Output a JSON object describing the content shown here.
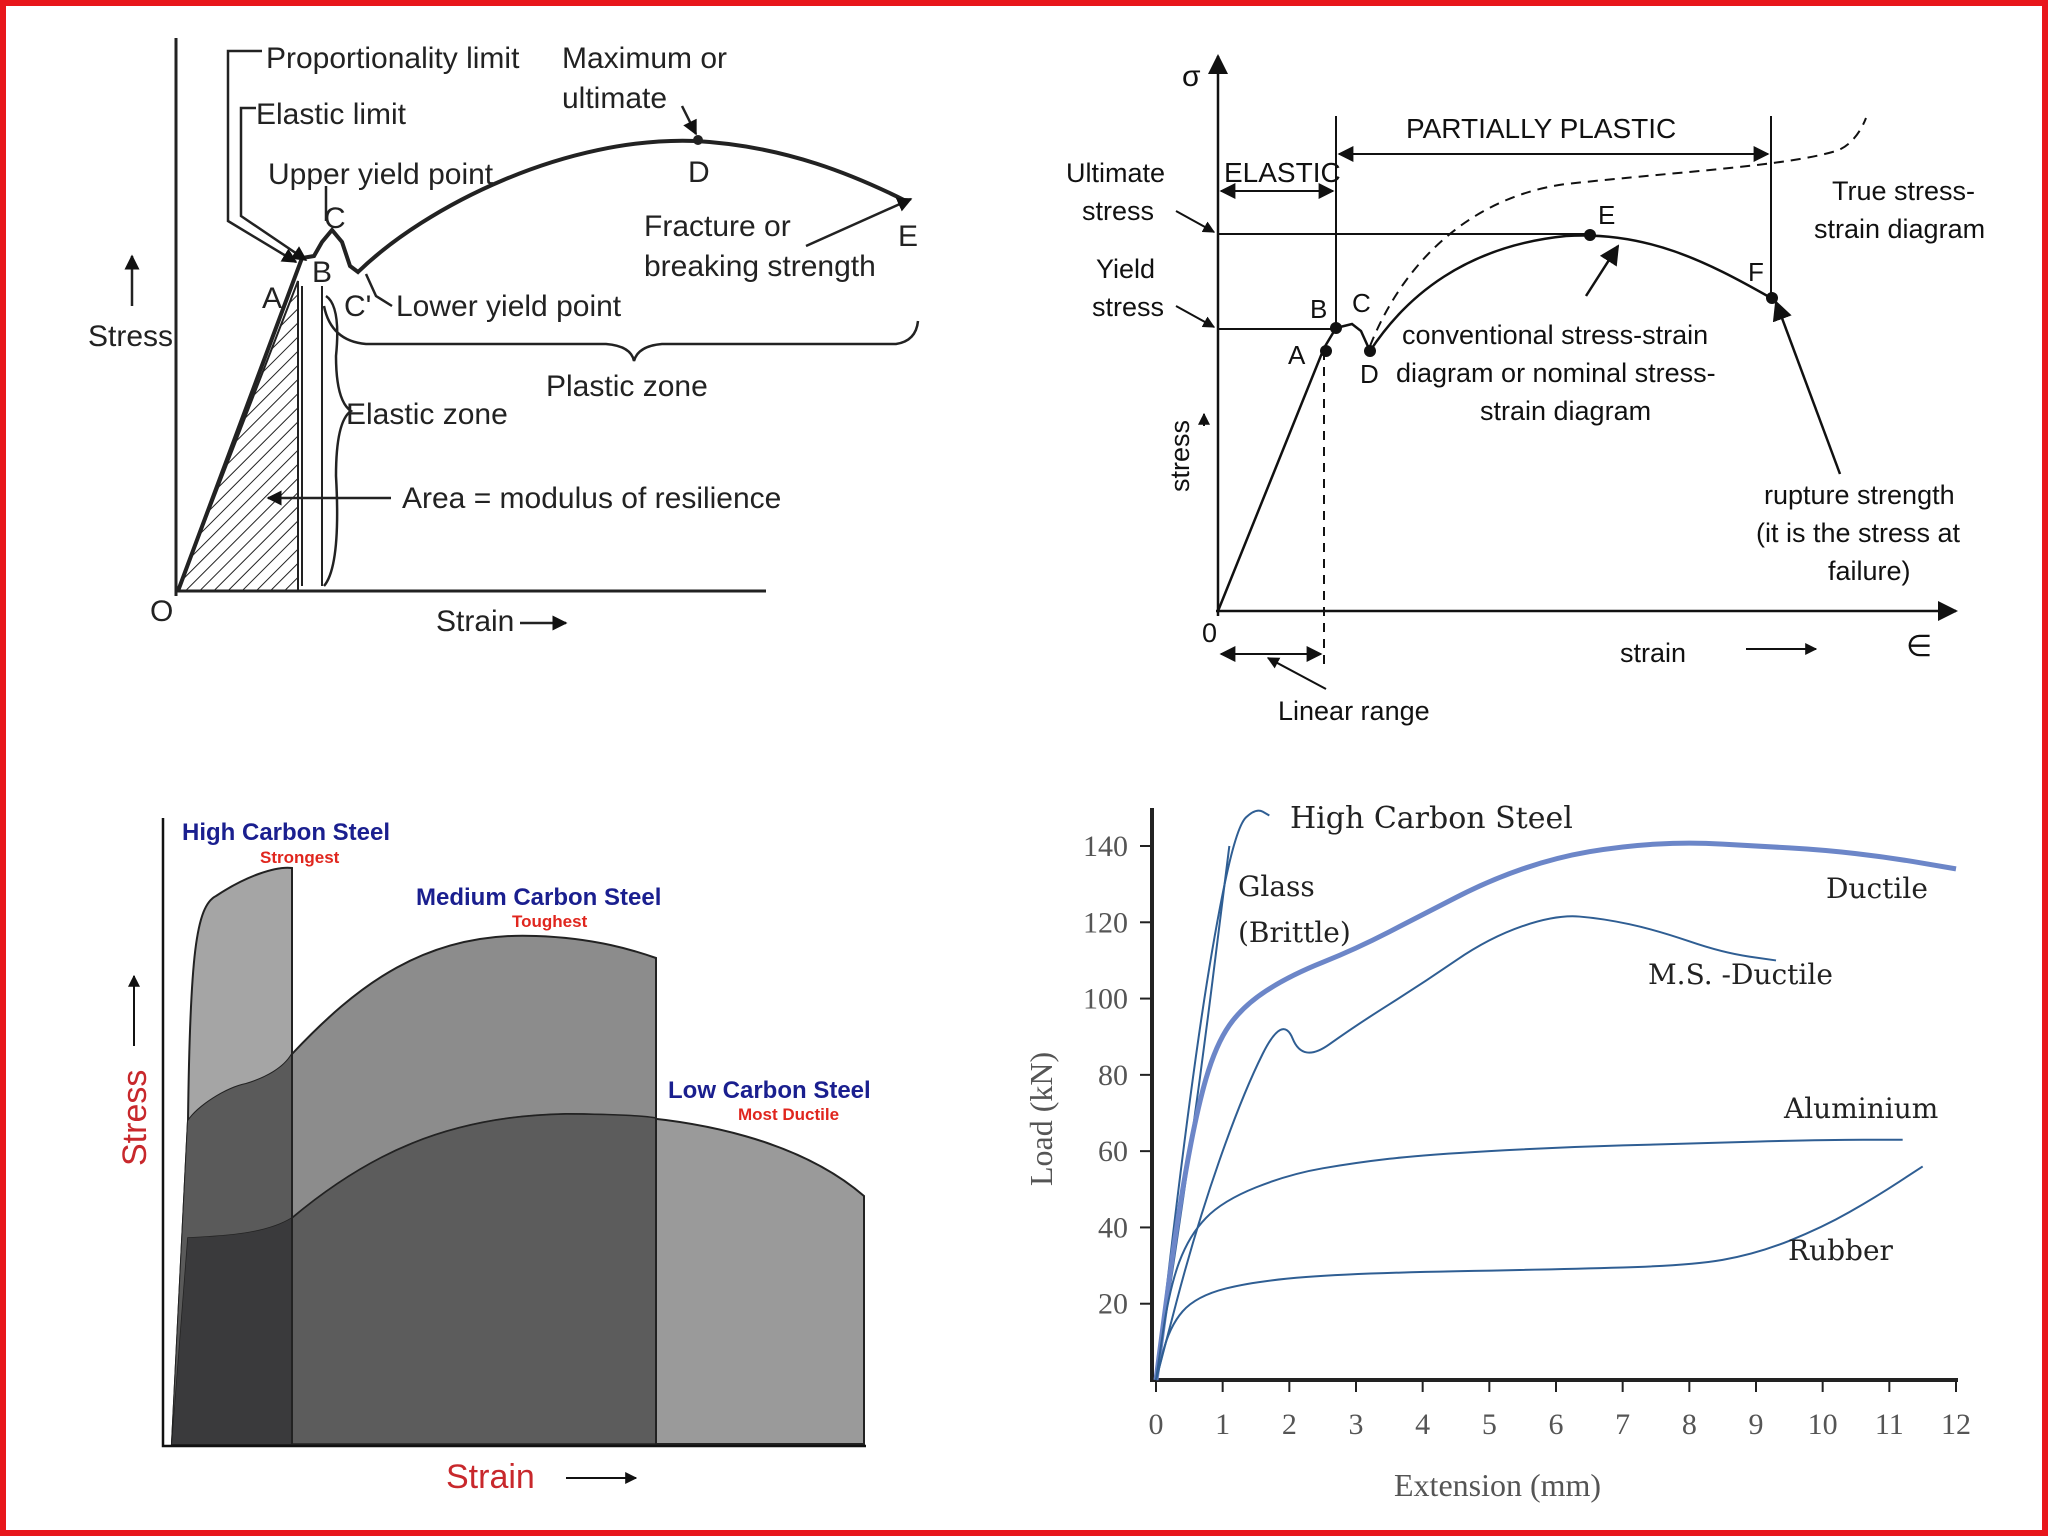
{
  "panel_a": {
    "labels": {
      "proportionality_limit": "Proportionality limit",
      "elastic_limit": "Elastic limit",
      "upper_yield_point": "Upper yield point",
      "maximum": "Maximum or",
      "ultimate": "ultimate",
      "fracture": "Fracture or",
      "breaking_strength": "breaking strength",
      "lower_yield_point": "Lower yield point",
      "plastic_zone": "Plastic zone",
      "elastic_zone": "Elastic zone",
      "area": "Area = modulus of resilience",
      "stress": "Stress",
      "strain": "Strain",
      "origin": "O",
      "pt_a": "A",
      "pt_b": "B",
      "pt_c": "C",
      "pt_c_prime": "C'",
      "pt_d": "D",
      "pt_e": "E"
    }
  },
  "panel_b": {
    "labels": {
      "sigma": "σ",
      "partially_plastic": "PARTIALLY PLASTIC",
      "elastic": "ELASTIC",
      "ultimate_stress_1": "Ultimate",
      "ultimate_stress_2": "stress",
      "yield_stress_1": "Yield",
      "yield_stress_2": "stress",
      "true_ss_1": "True stress-",
      "true_ss_2": "strain diagram",
      "conv_1": "conventional stress-strain",
      "conv_2": "diagram or nominal stress-",
      "conv_3": "strain diagram",
      "stress": "stress",
      "strain": "strain",
      "epsilon": "∈",
      "origin": "0",
      "rupture_1": "rupture strength",
      "rupture_2": "(it is the stress at",
      "rupture_3": "failure)",
      "linear_range": "Linear range",
      "pt_a": "A",
      "pt_b": "B",
      "pt_c": "C",
      "pt_d": "D",
      "pt_e": "E",
      "pt_f": "F"
    }
  },
  "panel_c": {
    "labels": {
      "high_carbon": "High Carbon Steel",
      "strongest": "Strongest",
      "medium_carbon": "Medium Carbon Steel",
      "toughest": "Toughest",
      "low_carbon": "Low Carbon Steel",
      "most_ductile": "Most Ductile",
      "stress": "Stress",
      "strain": "Strain"
    },
    "colors": {
      "title": "#1a1f8f",
      "subtitle": "#e0261e",
      "axis_label": "#c8282c"
    }
  },
  "chart_data": {
    "type": "line",
    "xlabel": "Extension (mm)",
    "ylabel": "Load (kN)",
    "xlim": [
      0,
      12
    ],
    "ylim": [
      0,
      150
    ],
    "x_ticks": [
      "0",
      "1",
      "2",
      "3",
      "4",
      "5",
      "6",
      "7",
      "8",
      "9",
      "10",
      "11",
      "12"
    ],
    "y_ticks": [
      "20",
      "40",
      "60",
      "80",
      "100",
      "120",
      "140"
    ],
    "series": [
      {
        "name": "High Carbon Steel",
        "points": [
          [
            0,
            0
          ],
          [
            0.4,
            60
          ],
          [
            0.8,
            110
          ],
          [
            1.2,
            145
          ],
          [
            1.5,
            150
          ],
          [
            1.7,
            148
          ]
        ]
      },
      {
        "name": "Glass (Brittle)",
        "points": [
          [
            0,
            0
          ],
          [
            0.6,
            70
          ],
          [
            1.1,
            140
          ]
        ]
      },
      {
        "name": "Ductile",
        "points": [
          [
            0,
            0
          ],
          [
            0.3,
            40
          ],
          [
            0.6,
            70
          ],
          [
            0.9,
            88
          ],
          [
            1.3,
            98
          ],
          [
            2,
            106
          ],
          [
            3,
            113
          ],
          [
            4,
            122
          ],
          [
            5,
            131
          ],
          [
            6,
            137
          ],
          [
            7,
            140
          ],
          [
            8,
            141
          ],
          [
            9,
            140
          ],
          [
            10,
            139
          ],
          [
            11,
            137
          ],
          [
            12,
            134
          ]
        ]
      },
      {
        "name": "M.S. -Ductile",
        "points": [
          [
            0,
            0
          ],
          [
            0.6,
            40
          ],
          [
            1.3,
            75
          ],
          [
            1.9,
            96
          ],
          [
            2.2,
            83
          ],
          [
            3,
            93
          ],
          [
            4,
            104
          ],
          [
            5,
            116
          ],
          [
            6,
            122
          ],
          [
            6.7,
            121
          ],
          [
            7.5,
            118
          ],
          [
            8.5,
            112
          ],
          [
            9.3,
            110
          ]
        ]
      },
      {
        "name": "Aluminium",
        "points": [
          [
            0,
            0
          ],
          [
            0.2,
            24
          ],
          [
            0.5,
            38
          ],
          [
            1,
            47
          ],
          [
            2,
            54
          ],
          [
            3,
            57
          ],
          [
            4,
            59
          ],
          [
            6,
            61
          ],
          [
            8,
            62
          ],
          [
            10,
            63
          ],
          [
            11.2,
            63
          ]
        ]
      },
      {
        "name": "Rubber",
        "points": [
          [
            0,
            0
          ],
          [
            0.2,
            14
          ],
          [
            0.6,
            22
          ],
          [
            1.5,
            26
          ],
          [
            3,
            28
          ],
          [
            6,
            29
          ],
          [
            8,
            30
          ],
          [
            9,
            33
          ],
          [
            10,
            40
          ],
          [
            10.8,
            48
          ],
          [
            11.5,
            56
          ]
        ]
      }
    ],
    "annotations": {
      "high_carbon": "High Carbon Steel",
      "glass_1": "Glass",
      "glass_2": "(Brittle)",
      "ductile": "Ductile",
      "ms_ductile": "M.S. -Ductile",
      "aluminium": "Aluminium",
      "rubber": "Rubber"
    },
    "line_colors": {
      "ductile": "#6c86c8",
      "others": "#2f5e93"
    }
  }
}
